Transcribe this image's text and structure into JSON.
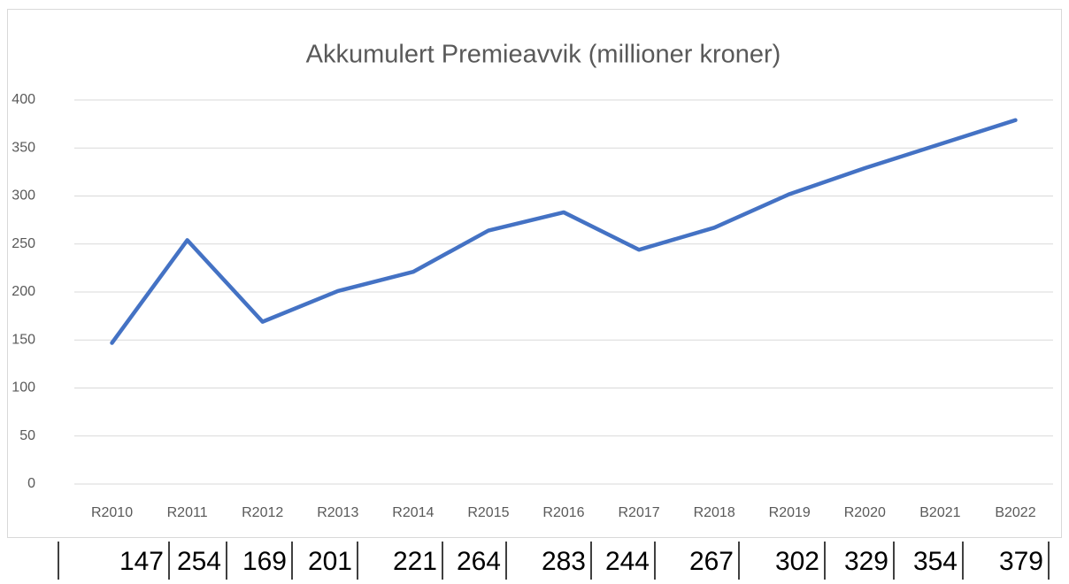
{
  "chart_data": {
    "type": "line",
    "title": "Akkumulert Premieavvik (millioner kroner)",
    "categories": [
      "R2010",
      "R2011",
      "R2012",
      "R2013",
      "R2014",
      "R2015",
      "R2016",
      "R2017",
      "R2018",
      "R2019",
      "R2020",
      "B2021",
      "B2022"
    ],
    "values": [
      147,
      254,
      169,
      201,
      221,
      264,
      283,
      244,
      267,
      302,
      329,
      354,
      379
    ],
    "color": "#4472c4",
    "ylim": [
      0,
      400
    ],
    "yticks": [
      0,
      50,
      100,
      150,
      200,
      250,
      300,
      350,
      400
    ],
    "grid": true
  }
}
